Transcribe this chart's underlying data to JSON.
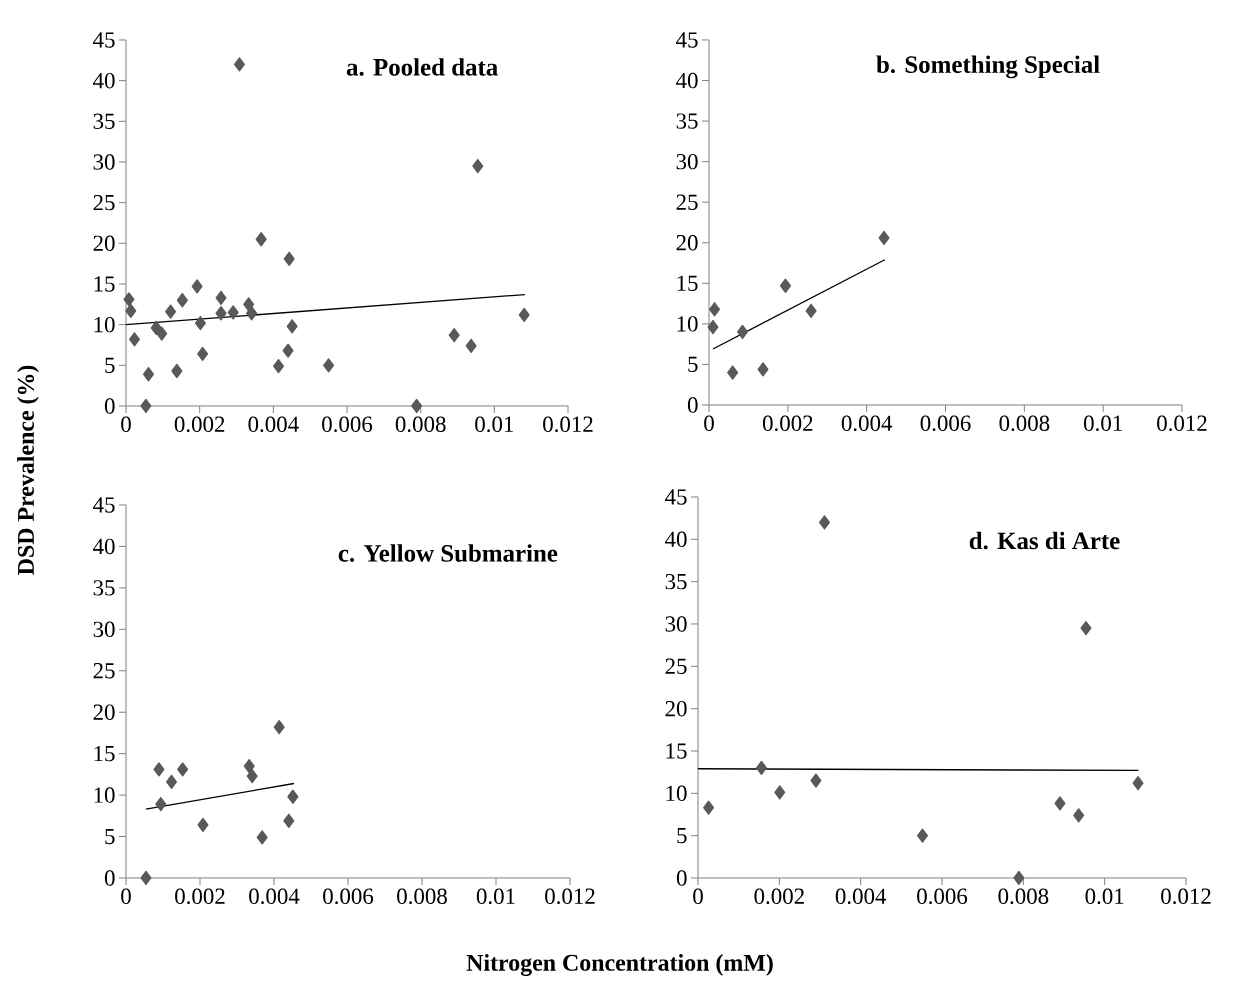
{
  "chart_data": [
    {
      "type": "scatter",
      "title": "a. Pooled data",
      "ylabel": "DSD Prevalence (%)",
      "xlim": [
        0,
        0.012
      ],
      "xticks": [
        0,
        0.002,
        0.004,
        0.006,
        0.008,
        0.01,
        0.012
      ],
      "ylim": [
        0,
        45
      ],
      "yticks": [
        0,
        5,
        10,
        15,
        20,
        25,
        30,
        35,
        40,
        45
      ],
      "marker": "diamond",
      "series": [
        {
          "type": "scatter",
          "color": "#595959",
          "x": [
            8e-05,
            0.00013,
            0.00023,
            0.00054,
            0.00061,
            0.00082,
            0.00097,
            0.00121,
            0.00138,
            0.00153,
            0.00193,
            0.00202,
            0.00208,
            0.00258,
            0.00258,
            0.00291,
            0.00308,
            0.00333,
            0.00341,
            0.00367,
            0.00414,
            0.0044,
            0.00443,
            0.00451,
            0.0055,
            0.00789,
            0.00891,
            0.00937,
            0.00955,
            0.01081
          ],
          "values": [
            13.1,
            11.7,
            8.2,
            0,
            3.9,
            9.6,
            8.9,
            11.6,
            4.3,
            13.0,
            14.7,
            10.2,
            6.4,
            13.3,
            11.4,
            11.5,
            42.0,
            12.5,
            11.4,
            20.5,
            4.9,
            6.8,
            18.1,
            9.8,
            5.0,
            0,
            8.7,
            7.4,
            29.5,
            11.2
          ]
        },
        {
          "type": "line",
          "color": "#000000",
          "marker": "none",
          "x": [
            0,
            0.01083
          ],
          "values": [
            10.0,
            13.7
          ]
        }
      ]
    },
    {
      "type": "scatter",
      "title": "b. Something Special",
      "xlim": [
        0,
        0.012
      ],
      "xticks": [
        0,
        0.002,
        0.004,
        0.006,
        0.008,
        0.01,
        0.012
      ],
      "ylim": [
        0,
        45
      ],
      "yticks": [
        0,
        5,
        10,
        15,
        20,
        25,
        30,
        35,
        40,
        45
      ],
      "marker": "diamond",
      "series": [
        {
          "type": "scatter",
          "color": "#595959",
          "x": [
            0.00014,
            0.0001,
            0.00085,
            0.0006,
            0.00137,
            0.00194,
            0.00259,
            0.00444
          ],
          "values": [
            11.8,
            9.6,
            9.0,
            4.0,
            4.4,
            14.7,
            11.6,
            20.6
          ]
        },
        {
          "type": "line",
          "color": "#000000",
          "marker": "none",
          "x": [
            0.0001,
            0.00446
          ],
          "values": [
            6.9,
            17.9
          ]
        }
      ]
    },
    {
      "type": "scatter",
      "title": "c. Yellow Submarine",
      "xlabel": "Nitrogen Concentration (mM)",
      "xlim": [
        0,
        0.012
      ],
      "xticks": [
        0,
        0.002,
        0.004,
        0.006,
        0.008,
        0.01,
        0.012
      ],
      "ylim": [
        0,
        45
      ],
      "yticks": [
        0,
        5,
        10,
        15,
        20,
        25,
        30,
        35,
        40,
        45
      ],
      "marker": "diamond",
      "series": [
        {
          "type": "scatter",
          "color": "#595959",
          "x": [
            0.00054,
            0.00089,
            0.00094,
            0.00123,
            0.00153,
            0.00208,
            0.00333,
            0.00341,
            0.00368,
            0.00414,
            0.0044,
            0.00451
          ],
          "values": [
            0,
            13.1,
            8.9,
            11.6,
            13.1,
            6.4,
            13.5,
            12.3,
            4.9,
            18.2,
            6.9,
            9.8
          ]
        },
        {
          "type": "line",
          "color": "#000000",
          "marker": "none",
          "x": [
            0.00054,
            0.00454
          ],
          "values": [
            8.3,
            11.4
          ]
        }
      ]
    },
    {
      "type": "scatter",
      "title": "d. Kas di Arte",
      "xlim": [
        0,
        0.012
      ],
      "xticks": [
        0,
        0.002,
        0.004,
        0.006,
        0.008,
        0.01,
        0.012
      ],
      "ylim": [
        0,
        45
      ],
      "yticks": [
        0,
        5,
        10,
        15,
        20,
        25,
        30,
        35,
        40,
        45
      ],
      "marker": "diamond",
      "series": [
        {
          "type": "scatter",
          "color": "#595959",
          "x": [
            0.00026,
            0.00156,
            0.00201,
            0.0029,
            0.00311,
            0.00552,
            0.00789,
            0.0089,
            0.00936,
            0.00954,
            0.01082
          ],
          "values": [
            8.3,
            13.0,
            10.1,
            11.5,
            42.0,
            5.0,
            0,
            8.8,
            7.4,
            29.5,
            11.2
          ]
        },
        {
          "type": "line",
          "color": "#000000",
          "marker": "none",
          "x": [
            0,
            0.01083
          ],
          "values": [
            12.9,
            12.7
          ]
        }
      ]
    }
  ]
}
